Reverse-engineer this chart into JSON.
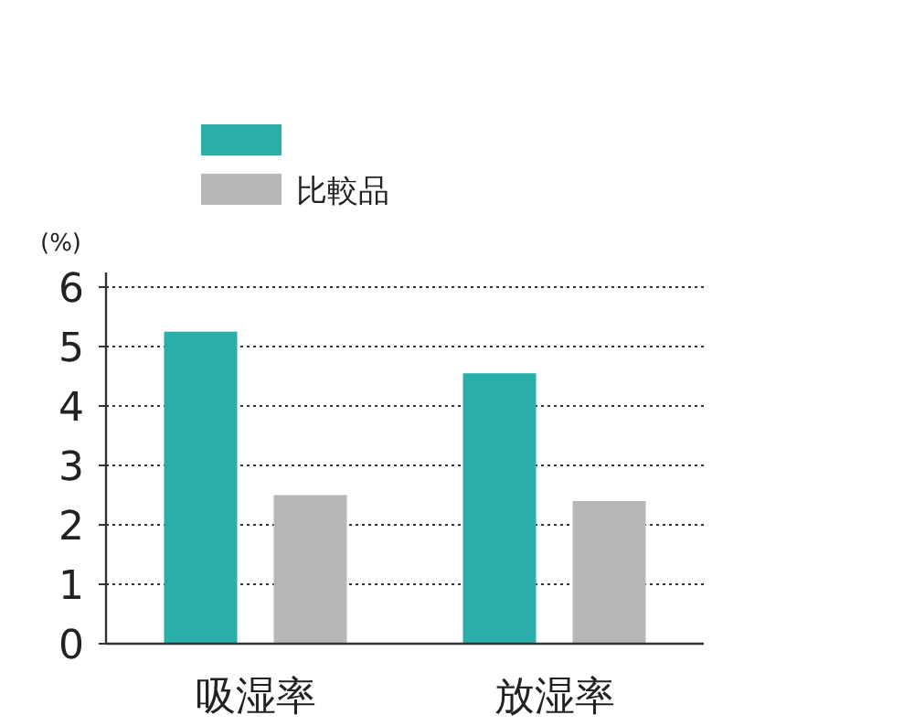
{
  "chart_data": {
    "type": "bar",
    "ylabel": "(%)",
    "categories": [
      "吸湿率",
      "放湿率"
    ],
    "series": [
      {
        "color": "#2aaeaa",
        "values": [
          5.25,
          4.55
        ]
      },
      {
        "name": "比較品",
        "color": "#b7b7b7",
        "values": [
          2.5,
          2.4
        ]
      }
    ],
    "ylim": [
      0,
      6
    ],
    "yticks": [
      0,
      1,
      2,
      3,
      4,
      5,
      6
    ],
    "grid": "y",
    "legend": "top left"
  }
}
